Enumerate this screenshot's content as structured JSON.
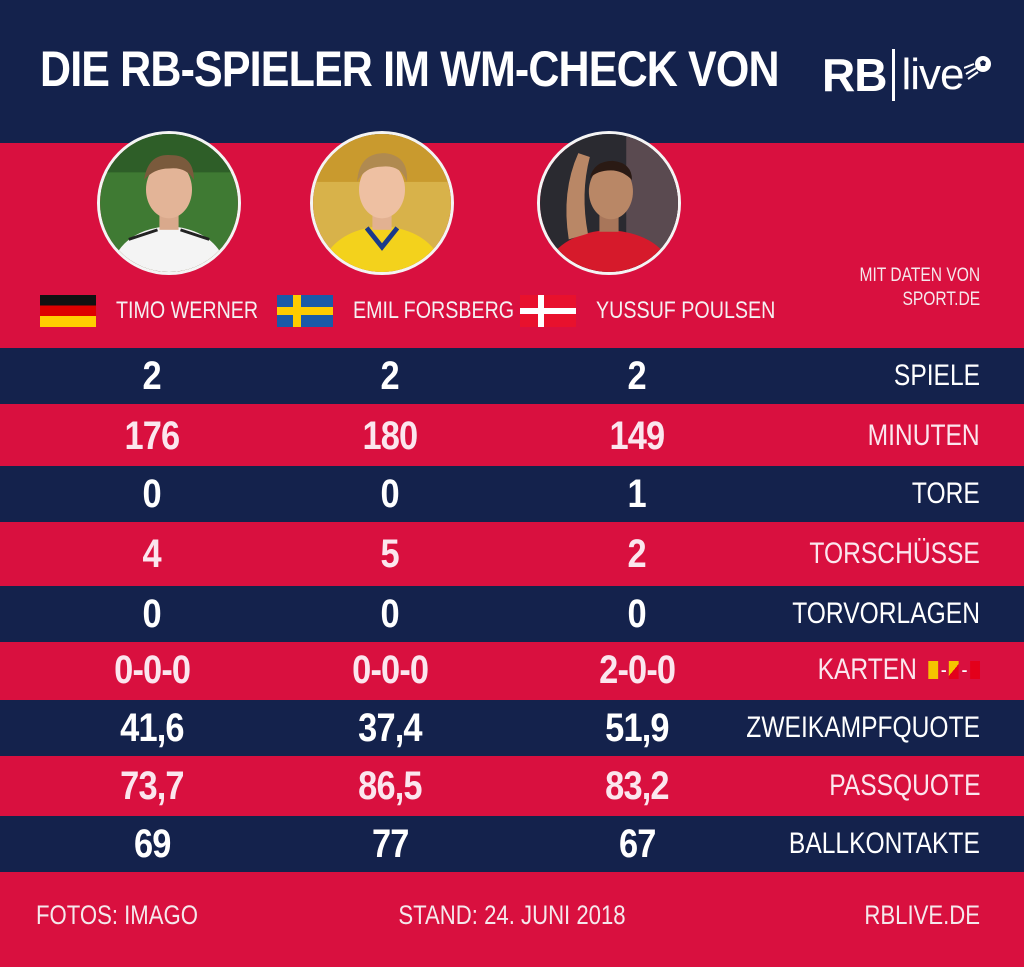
{
  "header": {
    "title": "DIE RB-SPIELER IM WM-CHECK VON",
    "logo": {
      "bold": "RB",
      "light": "live"
    }
  },
  "source": {
    "line1": "MIT DATEN VON",
    "line2": "SPORT.DE"
  },
  "players": [
    {
      "name": "TIMO WERNER",
      "flag": "germany-flag-icon"
    },
    {
      "name": "EMIL FORSBERG",
      "flag": "sweden-flag-icon"
    },
    {
      "name": "YUSSUF POULSEN",
      "flag": "denmark-flag-icon"
    }
  ],
  "stats": [
    {
      "label": "SPIELE",
      "values": [
        "2",
        "2",
        "2"
      ]
    },
    {
      "label": "MINUTEN",
      "values": [
        "176",
        "180",
        "149"
      ]
    },
    {
      "label": "TORE",
      "values": [
        "0",
        "0",
        "1"
      ]
    },
    {
      "label": "TORSCHÜSSE",
      "values": [
        "4",
        "5",
        "2"
      ]
    },
    {
      "label": "TORVORLAGEN",
      "values": [
        "0",
        "0",
        "0"
      ]
    },
    {
      "label": "KARTEN",
      "values": [
        "0-0-0",
        "0-0-0",
        "2-0-0"
      ]
    },
    {
      "label": "ZWEIKAMPFQUOTE",
      "values": [
        "41,6",
        "37,4",
        "51,9"
      ]
    },
    {
      "label": "PASSQUOTE",
      "values": [
        "73,7",
        "86,5",
        "83,2"
      ]
    },
    {
      "label": "BALLKONTAKTE",
      "values": [
        "69",
        "77",
        "67"
      ]
    }
  ],
  "colors": {
    "navy": "#14224c",
    "red": "#d9103f",
    "card_yellow": "#f5c400",
    "card_red": "#e3001b"
  },
  "footer": {
    "photos": "FOTOS: IMAGO",
    "date": "STAND: 24. JUNI 2018",
    "site": "RBLIVE.DE"
  }
}
